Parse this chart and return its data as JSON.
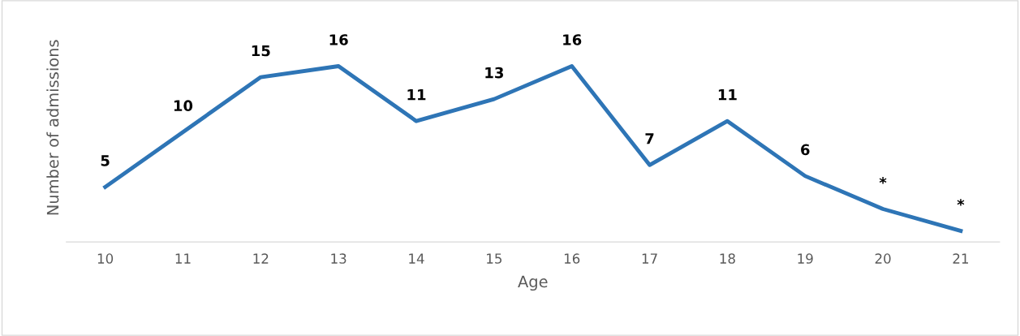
{
  "chart_data": {
    "type": "line",
    "xlabel": "Age",
    "ylabel": "Number of admissions",
    "categories": [
      "10",
      "11",
      "12",
      "13",
      "14",
      "15",
      "16",
      "17",
      "18",
      "19",
      "20",
      "21"
    ],
    "series": [
      {
        "color": "#2e75b6",
        "values": [
          5,
          10,
          15,
          16,
          11,
          13,
          16,
          7,
          11,
          6,
          3,
          1
        ],
        "value_labels": [
          "5",
          "10",
          "15",
          "16",
          "11",
          "13",
          "16",
          "7",
          "11",
          "6",
          "*",
          "*"
        ]
      }
    ],
    "tick_labels": "x",
    "grid": false,
    "legend": false,
    "marker": "none",
    "line_style": "solid"
  }
}
